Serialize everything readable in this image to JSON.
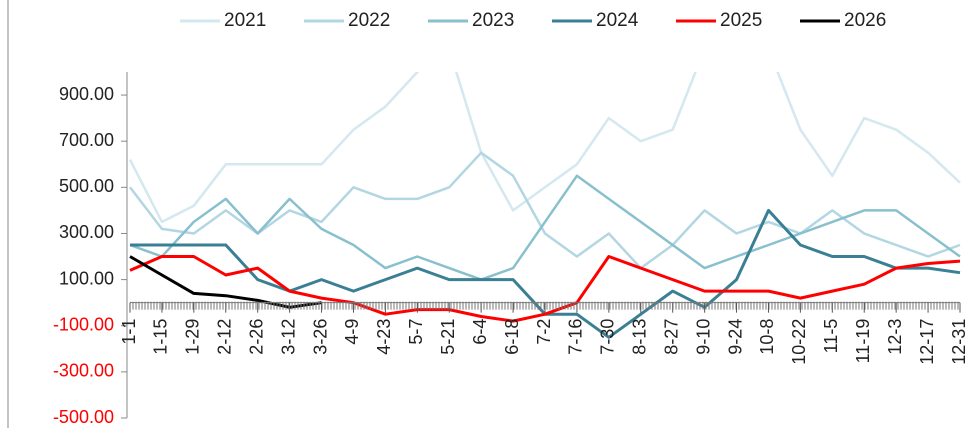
{
  "chart_data": {
    "type": "line",
    "categories": [
      "1-1",
      "1-15",
      "1-29",
      "2-12",
      "2-26",
      "3-12",
      "3-26",
      "4-9",
      "4-23",
      "5-7",
      "5-21",
      "6-4",
      "6-18",
      "7-2",
      "7-16",
      "7-30",
      "8-13",
      "8-27",
      "9-10",
      "9-24",
      "10-8",
      "10-22",
      "11-5",
      "11-19",
      "12-3",
      "12-17",
      "12-31"
    ],
    "series": [
      {
        "name": "2021",
        "color": "#d4e8ef",
        "values": [
          620,
          350,
          420,
          600,
          600,
          600,
          600,
          750,
          850,
          1000,
          1100,
          650,
          400,
          500,
          600,
          800,
          700,
          750,
          1100,
          1100,
          1100,
          750,
          550,
          800,
          750,
          650,
          520
        ]
      },
      {
        "name": "2022",
        "color": "#b3d6e3",
        "values": [
          500,
          320,
          300,
          400,
          300,
          400,
          350,
          500,
          450,
          450,
          500,
          650,
          550,
          300,
          200,
          300,
          150,
          250,
          400,
          300,
          350,
          300,
          400,
          300,
          250,
          200,
          250
        ]
      },
      {
        "name": "2023",
        "color": "#88c0ce",
        "values": [
          250,
          200,
          350,
          450,
          300,
          450,
          320,
          250,
          150,
          200,
          150,
          100,
          150,
          350,
          550,
          450,
          350,
          250,
          150,
          200,
          250,
          300,
          350,
          400,
          400,
          300,
          200
        ]
      },
      {
        "name": "2024",
        "color": "#3a7f93",
        "values": [
          250,
          250,
          250,
          250,
          100,
          50,
          100,
          50,
          100,
          150,
          100,
          100,
          100,
          -50,
          -50,
          -150,
          -50,
          50,
          -20,
          100,
          400,
          250,
          200,
          200,
          150,
          150,
          130
        ]
      },
      {
        "name": "2025",
        "color": "#ff0000",
        "values": [
          140,
          200,
          200,
          120,
          150,
          50,
          20,
          0,
          -50,
          -30,
          -30,
          -60,
          -80,
          -50,
          0,
          200,
          150,
          100,
          50,
          50,
          50,
          20,
          50,
          80,
          150,
          170,
          180
        ]
      },
      {
        "name": "2026",
        "color": "#000000",
        "values": [
          200,
          120,
          40,
          30,
          10,
          -20,
          0,
          null,
          null,
          null,
          null,
          null,
          null,
          null,
          null,
          null,
          null,
          null,
          null,
          null,
          null,
          null,
          null,
          null,
          null,
          null,
          null
        ]
      }
    ],
    "ylim": [
      -500,
      1000
    ],
    "yticks": [
      {
        "value": 900,
        "label": "900.00"
      },
      {
        "value": 700,
        "label": "700.00"
      },
      {
        "value": 500,
        "label": "500.00"
      },
      {
        "value": 300,
        "label": "300.00"
      },
      {
        "value": 100,
        "label": "100.00"
      },
      {
        "value": -100,
        "label": "-100.00"
      },
      {
        "value": -300,
        "label": "-300.00"
      },
      {
        "value": -500,
        "label": "-500.00"
      }
    ],
    "legend": "top"
  }
}
